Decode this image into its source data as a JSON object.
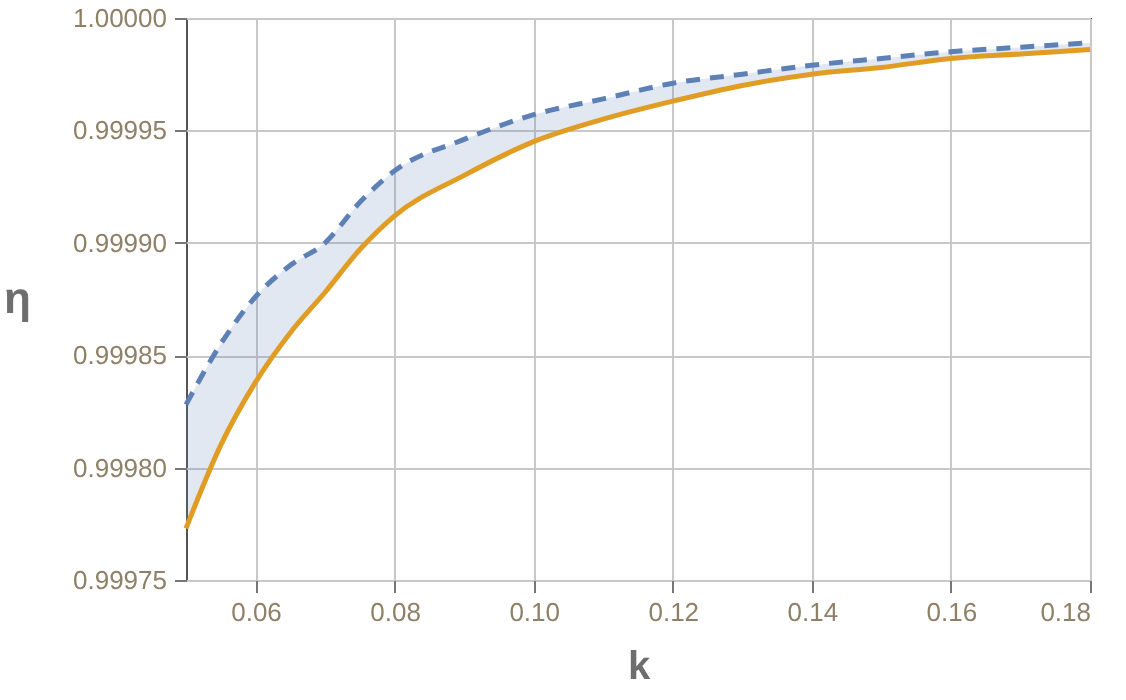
{
  "chart_data": {
    "type": "line",
    "xlabel": "k",
    "ylabel": "η",
    "x": [
      0.05,
      0.055,
      0.06,
      0.065,
      0.07,
      0.075,
      0.08,
      0.09,
      0.1,
      0.11,
      0.12,
      0.13,
      0.14,
      0.15,
      0.16,
      0.17,
      0.18
    ],
    "series": [
      {
        "color": "#5e81b5",
        "line_style": "dashed",
        "values": [
          0.999828,
          0.999855,
          0.999876,
          0.99989,
          0.9999,
          0.999918,
          0.999932,
          0.999946,
          0.999957,
          0.999964,
          0.999971,
          0.999975,
          0.999979,
          0.999982,
          0.999985,
          0.999987,
          0.999989
        ],
        "lower": [
          0.999773,
          0.99981,
          0.999838,
          0.99986,
          0.999878,
          0.999897,
          0.999912,
          0.99993,
          0.999945,
          0.999955,
          0.999963,
          0.99997,
          0.999975,
          0.999978,
          0.999982,
          0.999984,
          0.999986
        ],
        "upper": [
          0.999828,
          0.999855,
          0.999876,
          0.99989,
          0.9999,
          0.999918,
          0.999932,
          0.999946,
          0.999957,
          0.999964,
          0.999971,
          0.999975,
          0.999979,
          0.999982,
          0.999985,
          0.999987,
          0.999989
        ]
      },
      {
        "color": "#e19c24",
        "line_style": "solid",
        "values": [
          0.999773,
          0.99981,
          0.999838,
          0.99986,
          0.999878,
          0.999897,
          0.999912,
          0.99993,
          0.999945,
          0.999955,
          0.999963,
          0.99997,
          0.999975,
          0.999978,
          0.999982,
          0.999984,
          0.999986
        ]
      }
    ],
    "xlim": [
      0.05,
      0.18
    ],
    "xticks": [
      0.06,
      0.08,
      {
        "value": 0.1,
        "label": "0.10"
      },
      0.12,
      0.14,
      0.16,
      0.18
    ],
    "ylim": [
      0.99975,
      1.0
    ],
    "yticks": [
      0.99975,
      {
        "value": 0.9998,
        "label": "0.99980"
      },
      0.99985,
      {
        "value": 0.9999,
        "label": "0.99990"
      },
      0.99995,
      {
        "value": 1.0,
        "label": "1.00000"
      }
    ],
    "grid": true
  }
}
